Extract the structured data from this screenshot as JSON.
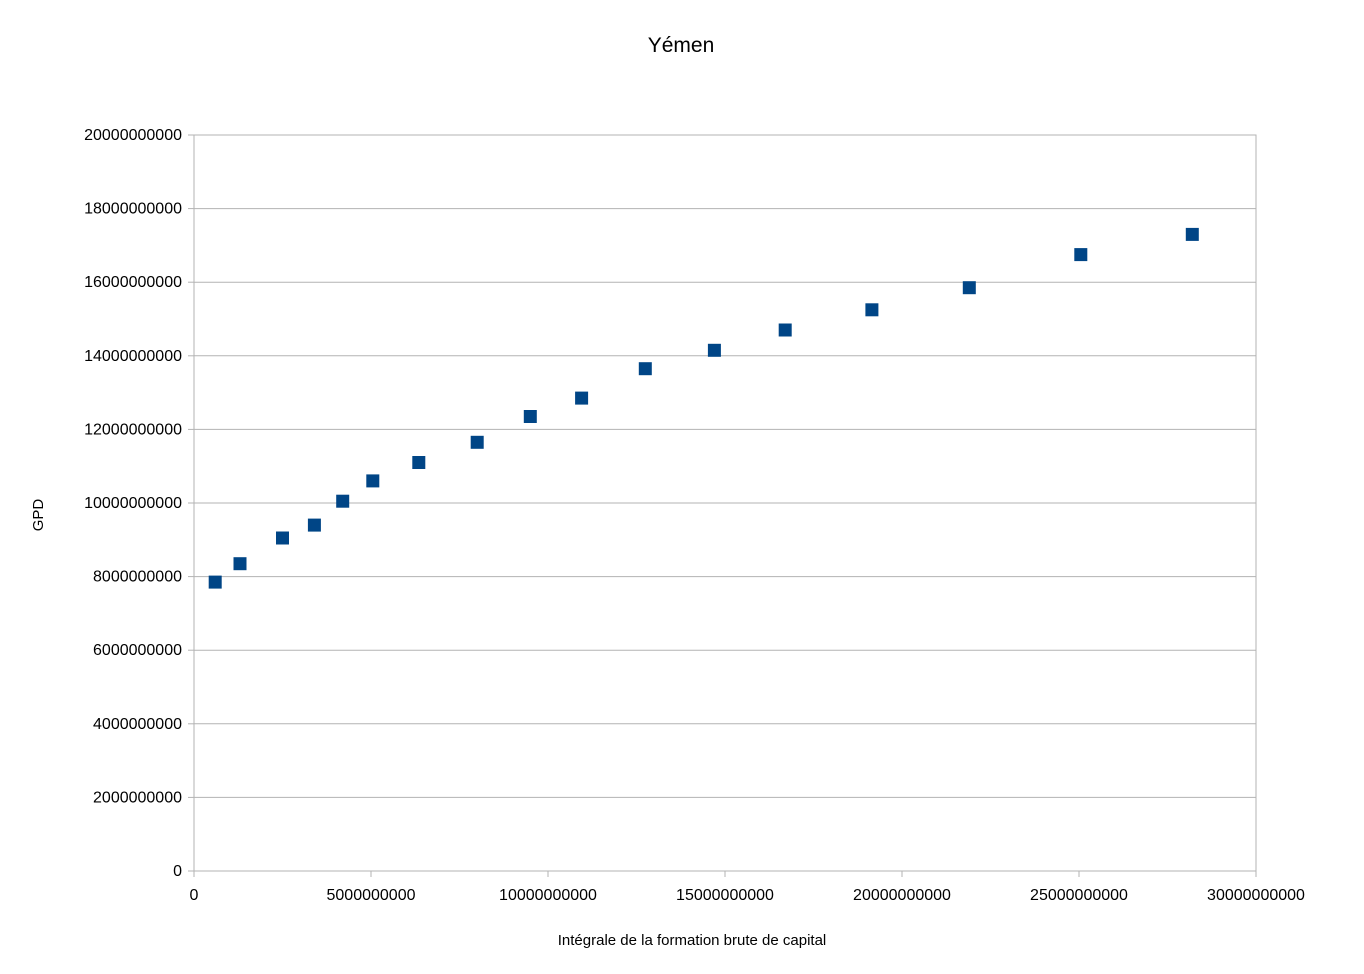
{
  "chart_data": {
    "type": "scatter",
    "title": "Yémen",
    "xlabel": "Intégrale de la formation brute de capital",
    "ylabel": "GPD",
    "xlim": [
      0,
      30000000000
    ],
    "ylim": [
      0,
      20000000000
    ],
    "x_ticks": [
      "0",
      "5000000000",
      "10000000000",
      "15000000000",
      "20000000000",
      "25000000000",
      "30000000000"
    ],
    "y_ticks": [
      "0",
      "2000000000",
      "4000000000",
      "6000000000",
      "8000000000",
      "10000000000",
      "12000000000",
      "14000000000",
      "16000000000",
      "18000000000",
      "20000000000"
    ],
    "grid": true,
    "legend": "none",
    "marker_color": "#004586",
    "marker": "square",
    "series": [
      {
        "points": [
          [
            600000000,
            7850000000
          ],
          [
            1300000000,
            8350000000
          ],
          [
            2500000000,
            9050000000
          ],
          [
            3400000000,
            9400000000
          ],
          [
            4200000000,
            10050000000
          ],
          [
            5050000000,
            10600000000
          ],
          [
            6350000000,
            11100000000
          ],
          [
            8000000000,
            11650000000
          ],
          [
            9500000000,
            12350000000
          ],
          [
            10950000000,
            12850000000
          ],
          [
            12750000000,
            13650000000
          ],
          [
            14700000000,
            14150000000
          ],
          [
            16700000000,
            14700000000
          ],
          [
            19150000000,
            15250000000
          ],
          [
            21900000000,
            15850000000
          ],
          [
            25050000000,
            16750000000
          ],
          [
            28200000000,
            17300000000
          ]
        ]
      }
    ]
  }
}
